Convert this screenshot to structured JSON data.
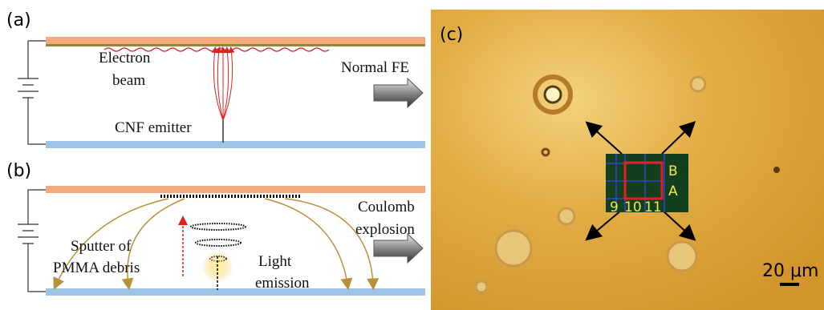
{
  "panel_a": {
    "label": "(a)",
    "electron_beam": [
      "Electron",
      "beam"
    ],
    "emitter": "CNF emitter",
    "arrow_label": "Normal FE"
  },
  "panel_b": {
    "label": "(b)",
    "debris": [
      "Sputter of",
      "PMMA debris"
    ],
    "emission": [
      "Light",
      "emission"
    ],
    "arrow_label": [
      "Coulomb",
      "explosion"
    ]
  },
  "panel_c": {
    "label": "(c)",
    "region_labels": [
      "B",
      "A"
    ],
    "column_labels": [
      "9",
      "10",
      "11"
    ],
    "scale_bar": "20 μm"
  }
}
